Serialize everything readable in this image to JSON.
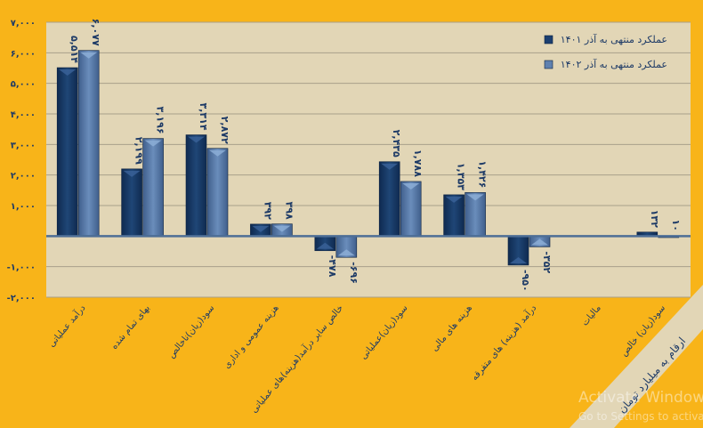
{
  "chart_data": {
    "type": "bar",
    "title": "",
    "xlabel": "",
    "ylabel": "",
    "unit_note": "ارقام به میلیارد تومان",
    "ylim": [
      -2000,
      7000
    ],
    "grid": true,
    "legend_position": "top-right",
    "yticks": [
      {
        "value": 7000,
        "label": "۷,۰۰۰"
      },
      {
        "value": 6000,
        "label": "۶,۰۰۰"
      },
      {
        "value": 5000,
        "label": "۵,۰۰۰"
      },
      {
        "value": 4000,
        "label": "۴,۰۰۰"
      },
      {
        "value": 3000,
        "label": "۳,۰۰۰"
      },
      {
        "value": 2000,
        "label": "۲,۰۰۰"
      },
      {
        "value": 1000,
        "label": "۱,۰۰۰"
      },
      {
        "value": -1000,
        "label": "-۱,۰۰۰"
      },
      {
        "value": -2000,
        "label": "-۲,۰۰۰"
      }
    ],
    "categories": [
      "درآمد عملیاتی",
      "بهای تمام شده",
      "سود(زیان)ناخالص",
      "هزینه عمومی و اداری",
      "خالص سایر درآمد(هزینه)های عملیاتی",
      "سود(زیان)عملیاتی",
      "هزینه های مالی",
      "درآمد (هزینه) های متفرقه",
      "مالیات",
      "سود(زیان) خالص"
    ],
    "series": [
      {
        "name": "عملکرد منتهی به آذر ۱۴۰۱",
        "color": "#1C3F70",
        "values": [
          5514,
          2199,
          3314,
          392,
          -478,
          2435,
          1353,
          -950,
          0,
          132
        ],
        "labels": [
          "۵,۵۱۴",
          "۲,۱۹۹",
          "۳,۳۱۴",
          "۳۹۲",
          "-۴۷۸",
          "۲,۴۳۵",
          "۱,۳۵۳",
          "-۹۵۰",
          "",
          "۱۳۲"
        ]
      },
      {
        "name": "عملکرد منتهی به آذر ۱۴۰۲",
        "color": "#5F81AF",
        "values": [
          6077,
          3196,
          2872,
          398,
          -696,
          1788,
          1426,
          -352,
          0,
          10
        ],
        "labels": [
          "۶,۰۷۷",
          "۳,۱۹۶",
          "۲,۸۷۲",
          "۳۹۸",
          "-۶۹۶",
          "۱,۷۸۸",
          "۱,۴۲۶",
          "-۳۵۲",
          "",
          "۱۰"
        ]
      }
    ]
  },
  "watermark": {
    "line1": "Activate Windows",
    "line2": "Go to Settings to activate Windows."
  }
}
